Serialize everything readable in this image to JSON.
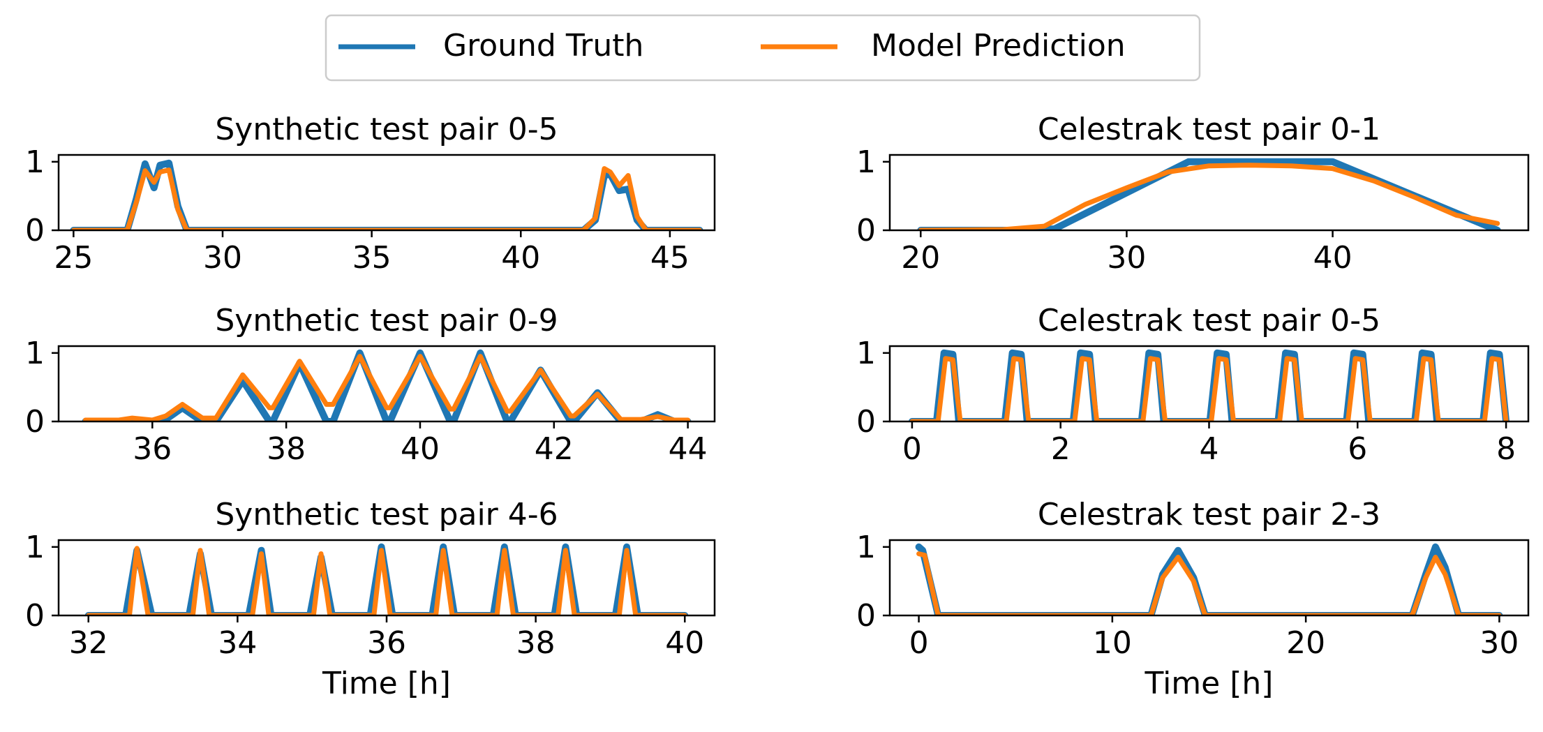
{
  "legend": {
    "entries": [
      {
        "label": "Ground Truth",
        "color": "#1f77b4"
      },
      {
        "label": "Model Prediction",
        "color": "#ff7f0e"
      }
    ]
  },
  "chart_data": [
    {
      "type": "line",
      "title": "Synthetic test pair 0-5",
      "xlabel": "",
      "ylabel": "",
      "xlim": [
        24.5,
        46.5
      ],
      "ylim": [
        0,
        1.1
      ],
      "xticks": [
        25,
        30,
        35,
        40,
        45
      ],
      "xtick_labels": [
        "25",
        "30",
        "35",
        "40",
        "45"
      ],
      "yticks": [
        0,
        1
      ],
      "ytick_labels": [
        "0",
        "1"
      ],
      "series": [
        {
          "name": "Ground Truth",
          "color": "#1f77b4",
          "x": [
            25,
            26.8,
            27.1,
            27.4,
            27.7,
            27.9,
            28.2,
            28.5,
            28.8,
            29,
            42.1,
            42.5,
            42.8,
            43.0,
            43.3,
            43.6,
            43.9,
            44.2,
            46
          ],
          "y": [
            0,
            0,
            0.45,
            0.97,
            0.62,
            0.95,
            0.98,
            0.35,
            0,
            0,
            0,
            0.15,
            0.8,
            0.82,
            0.58,
            0.6,
            0.15,
            0,
            0
          ]
        },
        {
          "name": "Model Prediction",
          "color": "#ff7f0e",
          "x": [
            25,
            26.8,
            27.1,
            27.4,
            27.7,
            27.9,
            28.2,
            28.5,
            28.8,
            29,
            42.1,
            42.5,
            42.8,
            43.0,
            43.3,
            43.6,
            43.9,
            44.2,
            46
          ],
          "y": [
            0,
            0,
            0.4,
            0.87,
            0.7,
            0.85,
            0.88,
            0.3,
            0,
            0,
            0,
            0.18,
            0.9,
            0.85,
            0.65,
            0.8,
            0.2,
            0,
            0
          ]
        }
      ]
    },
    {
      "type": "line",
      "title": "Celestrak test pair 0-1",
      "xlabel": "",
      "ylabel": "",
      "xlim": [
        18.5,
        49.5
      ],
      "ylim": [
        0,
        1.1
      ],
      "xticks": [
        20,
        30,
        40
      ],
      "xtick_labels": [
        "20",
        "30",
        "40"
      ],
      "yticks": [
        0,
        1
      ],
      "ytick_labels": [
        "0",
        "1"
      ],
      "series": [
        {
          "name": "Ground Truth",
          "color": "#1f77b4",
          "x": [
            20,
            25,
            26.5,
            33,
            40,
            48
          ],
          "y": [
            0,
            0,
            0.02,
            1,
            1,
            0
          ]
        },
        {
          "name": "Model Prediction",
          "color": "#ff7f0e",
          "x": [
            20,
            24,
            26,
            28,
            30,
            32,
            34,
            36,
            38,
            40,
            42,
            44,
            46,
            48
          ],
          "y": [
            0,
            0.01,
            0.06,
            0.38,
            0.62,
            0.85,
            0.94,
            0.95,
            0.94,
            0.9,
            0.72,
            0.48,
            0.22,
            0.1
          ]
        }
      ]
    },
    {
      "type": "line",
      "title": "Synthetic test pair 0-9",
      "xlabel": "",
      "ylabel": "",
      "xlim": [
        34.6,
        44.4
      ],
      "ylim": [
        0,
        1.1
      ],
      "xticks": [
        36,
        38,
        40,
        42,
        44
      ],
      "xtick_labels": [
        "36",
        "38",
        "40",
        "42",
        "44"
      ],
      "yticks": [
        0,
        1
      ],
      "ytick_labels": [
        "0",
        "1"
      ],
      "series": [
        {
          "name": "Ground Truth",
          "color": "#1f77b4",
          "x": [
            35,
            36.0,
            36.2,
            36.45,
            36.7,
            36.95,
            37.35,
            37.75,
            37.8,
            38.2,
            38.6,
            38.7,
            39.1,
            39.5,
            39.55,
            40.0,
            40.45,
            40.5,
            40.9,
            41.3,
            41.35,
            41.8,
            42.25,
            42.3,
            42.65,
            43.0,
            43.3,
            43.55,
            43.8,
            44
          ],
          "y": [
            0,
            0,
            0.03,
            0.2,
            0.03,
            0,
            0.6,
            0,
            0,
            0.85,
            0,
            0,
            1,
            0,
            0,
            1,
            0,
            0,
            1,
            0,
            0,
            0.75,
            0,
            0,
            0.42,
            0,
            0,
            0.1,
            0,
            0
          ]
        },
        {
          "name": "Model Prediction",
          "color": "#ff7f0e",
          "x": [
            35,
            35.5,
            35.7,
            36.0,
            36.2,
            36.45,
            36.75,
            36.95,
            37.35,
            37.75,
            37.8,
            38.2,
            38.6,
            38.7,
            39.1,
            39.5,
            39.55,
            40.0,
            40.45,
            40.5,
            40.9,
            41.3,
            41.35,
            41.8,
            42.25,
            42.3,
            42.65,
            43.0,
            43.3,
            43.55,
            43.8,
            44
          ],
          "y": [
            0.02,
            0.02,
            0.05,
            0.02,
            0.08,
            0.25,
            0.05,
            0.05,
            0.68,
            0.2,
            0.2,
            0.88,
            0.25,
            0.25,
            0.95,
            0.2,
            0.2,
            0.95,
            0.18,
            0.18,
            0.95,
            0.15,
            0.15,
            0.75,
            0.08,
            0.08,
            0.4,
            0.03,
            0.03,
            0.07,
            0.02,
            0.02
          ]
        }
      ]
    },
    {
      "type": "line",
      "title": "Celestrak test pair 0-5",
      "xlabel": "",
      "ylabel": "",
      "xlim": [
        -0.3,
        8.3
      ],
      "ylim": [
        0,
        1.1
      ],
      "xticks": [
        0,
        2,
        4,
        6,
        8
      ],
      "xtick_labels": [
        "0",
        "2",
        "4",
        "6",
        "8"
      ],
      "yticks": [
        0,
        1
      ],
      "ytick_labels": [
        "0",
        "1"
      ],
      "series": [
        {
          "name": "Ground Truth",
          "color": "#1f77b4",
          "x": [
            0,
            0.33,
            0.43,
            0.55,
            0.63,
            1.25,
            1.35,
            1.47,
            1.55,
            2.17,
            2.27,
            2.39,
            2.47,
            3.09,
            3.19,
            3.31,
            3.39,
            4.01,
            4.11,
            4.23,
            4.31,
            4.93,
            5.03,
            5.15,
            5.23,
            5.85,
            5.95,
            6.07,
            6.15,
            6.77,
            6.87,
            6.99,
            7.07,
            7.69,
            7.79,
            7.91,
            8
          ],
          "y": [
            0,
            0,
            1,
            0.98,
            0,
            0,
            1,
            0.98,
            0,
            0,
            1,
            0.98,
            0,
            0,
            1,
            0.98,
            0,
            0,
            1,
            0.98,
            0,
            0,
            1,
            0.98,
            0,
            0,
            1,
            0.98,
            0,
            0,
            1,
            0.98,
            0,
            0,
            1,
            0.98,
            0
          ]
        },
        {
          "name": "Model Prediction",
          "color": "#ff7f0e",
          "x": [
            0,
            0.35,
            0.45,
            0.55,
            0.65,
            1.27,
            1.37,
            1.47,
            1.57,
            2.19,
            2.29,
            2.39,
            2.49,
            3.11,
            3.21,
            3.31,
            3.41,
            4.03,
            4.13,
            4.23,
            4.33,
            4.95,
            5.05,
            5.15,
            5.25,
            5.87,
            5.97,
            6.07,
            6.17,
            6.79,
            6.89,
            6.99,
            7.09,
            7.71,
            7.81,
            7.91,
            8
          ],
          "y": [
            0,
            0,
            0.92,
            0.9,
            0,
            0,
            0.92,
            0.9,
            0,
            0,
            0.92,
            0.9,
            0,
            0,
            0.92,
            0.9,
            0,
            0,
            0.92,
            0.9,
            0,
            0,
            0.92,
            0.9,
            0,
            0,
            0.92,
            0.9,
            0,
            0,
            0.92,
            0.9,
            0,
            0,
            0.92,
            0.9,
            0
          ]
        }
      ]
    },
    {
      "type": "line",
      "title": "Synthetic test pair 4-6",
      "xlabel": "Time [h]",
      "ylabel": "",
      "xlim": [
        31.6,
        40.4
      ],
      "ylim": [
        0,
        1.1
      ],
      "xticks": [
        32,
        34,
        36,
        38,
        40
      ],
      "xtick_labels": [
        "32",
        "34",
        "36",
        "38",
        "40"
      ],
      "yticks": [
        0,
        1
      ],
      "ytick_labels": [
        "0",
        "1"
      ],
      "series": [
        {
          "name": "Ground Truth",
          "color": "#1f77b4",
          "x": [
            32,
            32.5,
            32.65,
            32.85,
            33.35,
            33.5,
            33.65,
            34.15,
            34.32,
            34.45,
            34.97,
            35.12,
            35.27,
            35.78,
            35.93,
            36.08,
            36.61,
            36.76,
            36.91,
            37.43,
            37.58,
            37.73,
            38.25,
            38.4,
            38.55,
            39.07,
            39.22,
            39.37,
            40
          ],
          "y": [
            0,
            0,
            0.95,
            0,
            0,
            0.9,
            0,
            0,
            0.95,
            0,
            0,
            0.85,
            0,
            0,
            1,
            0,
            0,
            1,
            0,
            0,
            1,
            0,
            0,
            1,
            0,
            0,
            1,
            0,
            0
          ]
        },
        {
          "name": "Model Prediction",
          "color": "#ff7f0e",
          "x": [
            32,
            32.55,
            32.65,
            32.8,
            33.4,
            33.5,
            33.62,
            34.2,
            34.32,
            34.42,
            35.02,
            35.12,
            35.24,
            35.83,
            35.93,
            36.05,
            36.66,
            36.76,
            36.88,
            37.48,
            37.58,
            37.7,
            38.3,
            38.4,
            38.52,
            39.12,
            39.22,
            39.34,
            40
          ],
          "y": [
            0,
            0,
            0.98,
            0,
            0,
            0.95,
            0,
            0,
            0.9,
            0,
            0,
            0.9,
            0,
            0,
            0.95,
            0,
            0,
            0.95,
            0,
            0,
            0.95,
            0,
            0,
            0.95,
            0,
            0,
            0.95,
            0,
            0
          ]
        }
      ]
    },
    {
      "type": "line",
      "title": "Celestrak test pair 2-3",
      "xlabel": "Time [h]",
      "ylabel": "",
      "xlim": [
        -1.5,
        31.5
      ],
      "ylim": [
        0,
        1.1
      ],
      "xticks": [
        0,
        10,
        20,
        30
      ],
      "xtick_labels": [
        "0",
        "10",
        "20",
        "30"
      ],
      "yticks": [
        0,
        1
      ],
      "ytick_labels": [
        "0",
        "1"
      ],
      "series": [
        {
          "name": "Ground Truth",
          "color": "#1f77b4",
          "x": [
            0,
            0.2,
            1.0,
            1.4,
            12.0,
            12.6,
            13.4,
            14.2,
            14.8,
            25.5,
            26.2,
            26.7,
            27.2,
            27.9,
            30
          ],
          "y": [
            1,
            0.95,
            0,
            0,
            0,
            0.6,
            0.95,
            0.55,
            0,
            0,
            0.6,
            1,
            0.7,
            0,
            0
          ]
        },
        {
          "name": "Model Prediction",
          "color": "#ff7f0e",
          "x": [
            0,
            0.3,
            1.0,
            1.4,
            12.0,
            12.6,
            13.4,
            14.2,
            14.8,
            25.5,
            26.2,
            26.7,
            27.2,
            27.9,
            30
          ],
          "y": [
            0.9,
            0.88,
            0,
            0,
            0,
            0.55,
            0.85,
            0.5,
            0,
            0,
            0.55,
            0.85,
            0.6,
            0,
            0
          ]
        }
      ]
    }
  ]
}
